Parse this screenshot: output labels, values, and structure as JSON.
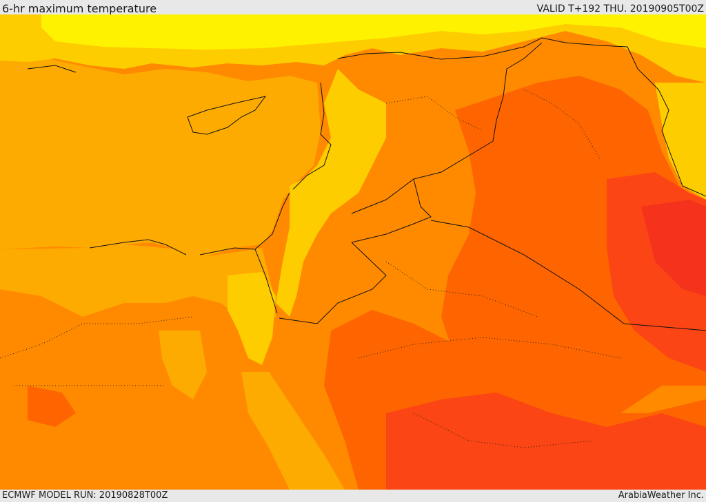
{
  "header": {
    "title": "6-hr maximum temperature",
    "valid": "VALID T+192 THU. 20190905T00Z"
  },
  "footer": {
    "model_run": "ECMWF MODEL RUN: 20190828T00Z",
    "credit": "ArabiaWeather Inc."
  },
  "colors": {
    "sea": "#fdab00",
    "lightest_yellow": "#fff200",
    "yellow": "#fecd00",
    "orange": "#ff8a00",
    "dark_orange": "#fe6500",
    "red": "#fc4514",
    "deep_red": "#f5321b",
    "border": "#111111"
  }
}
